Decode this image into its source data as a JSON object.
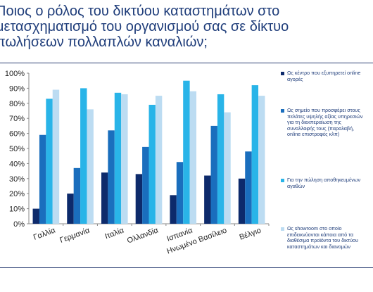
{
  "title": "Ποιος ο ρόλος του δικτύου καταστημάτων στο μετασχηματισμό του οργανισμού σας σε δίκτυο πωλήσεων πολλαπλών καναλιών;",
  "chart_data": {
    "type": "bar",
    "title": "Ποιος ο ρόλος του δικτύου καταστημάτων στο μετασχηματισμό του οργανισμού σας σε δίκτυο πωλήσεων πολλαπλών καναλιών;",
    "categories": [
      "Γαλλία",
      "Γερμανία",
      "Ιταλία",
      "Ολλανδία",
      "Ισπανία",
      "Ηνωμένο Βασίλειο",
      "Βέλγιο"
    ],
    "ylim": [
      0,
      100
    ],
    "yticks": [
      0,
      10,
      20,
      30,
      40,
      50,
      60,
      70,
      80,
      90,
      100
    ],
    "ytick_suffix": "%",
    "grid": false,
    "legend_position": "right",
    "series": [
      {
        "name": "Ως κέντρο που εξυπηρετεί online αγορές",
        "color": "#0d2a6b",
        "values": [
          10,
          20,
          34,
          33,
          19,
          32,
          30
        ]
      },
      {
        "name": "Ως σημείο που προσφέρει στους πελάτες υψηλής αξίας υπηρεσιών για τη διεκπεραίωση της συναλλαφής τους (παραλαβή, online επιστροφές κλπ)",
        "color": "#1a6ebd",
        "values": [
          59,
          37,
          62,
          51,
          41,
          65,
          48
        ]
      },
      {
        "name": "Για την πώληση αποθηκευμένων αγαθών",
        "color": "#29b4e8",
        "values": [
          83,
          90,
          87,
          79,
          95,
          86,
          92
        ]
      },
      {
        "name": "Ως showroom στο οποίο επιδεικνύονται κάποια από τα διαθέσιμα προϊόντα του δικτύου καταστημάτων και διανομών",
        "color": "#bcdcf2",
        "values": [
          89,
          76,
          86,
          85,
          88,
          74,
          85
        ]
      }
    ]
  }
}
